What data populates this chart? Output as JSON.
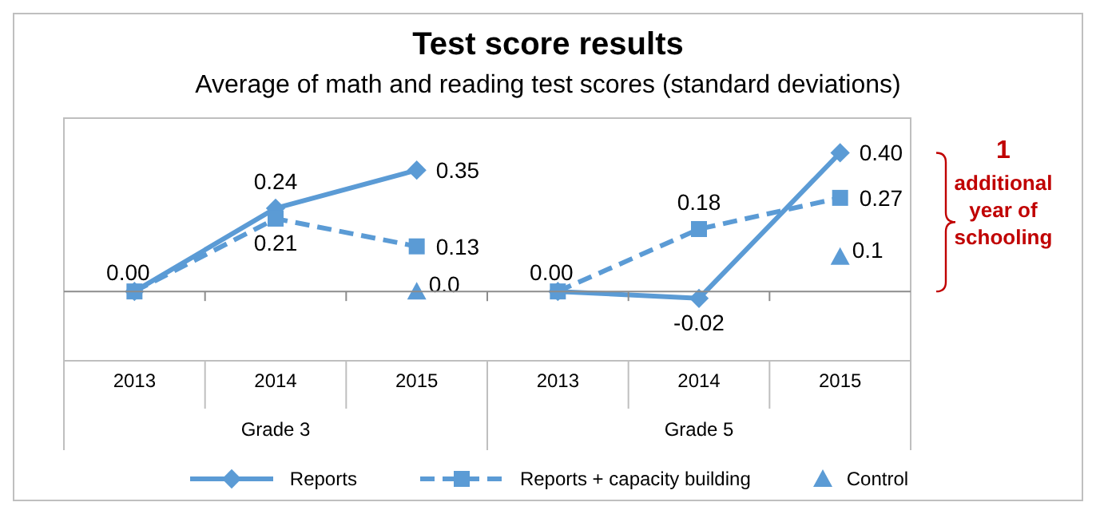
{
  "chart_data": {
    "type": "line",
    "title": "Test score results",
    "subtitle": "Average of math and reading test scores (standard deviations)",
    "categories": [
      "2013",
      "2014",
      "2015",
      "2013",
      "2014",
      "2015"
    ],
    "series": [
      {
        "name": "Reports",
        "color": "#5b9bd5",
        "marker": "diamond",
        "line_style": "solid",
        "values": [
          0.0,
          0.24,
          0.35,
          0.0,
          -0.02,
          0.4
        ],
        "value_labels": [
          "0.00",
          "0.24",
          "0.35",
          "0.00",
          "-0.02",
          "0.40"
        ]
      },
      {
        "name": "Reports + capacity building",
        "color": "#5b9bd5",
        "marker": "square",
        "line_style": "dashed",
        "values": [
          0.0,
          0.21,
          0.13,
          0.0,
          0.18,
          0.27
        ],
        "value_labels": [
          null,
          "0.21",
          "0.13",
          null,
          "0.18",
          "0.27"
        ]
      },
      {
        "name": "Control",
        "type": "scatter",
        "color": "#5b9bd5",
        "marker": "triangle",
        "values": [
          null,
          null,
          0.0,
          null,
          null,
          0.1
        ],
        "value_labels": [
          null,
          null,
          "0.0",
          null,
          null,
          "0.1"
        ]
      }
    ],
    "annotations": [
      "Grade 3",
      "Grade 5",
      "1 additional year of schooling"
    ],
    "ylim": [
      -0.2,
      0.5
    ],
    "tick_labels": "x",
    "grid": false,
    "legend": "bottom"
  }
}
